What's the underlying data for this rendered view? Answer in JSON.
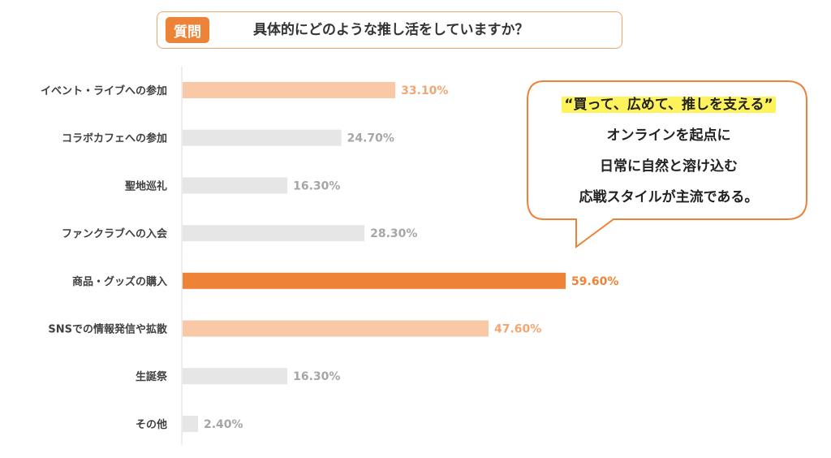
{
  "question": {
    "badge": "質問",
    "text": "具体的にどのような推し活をしていますか？"
  },
  "callout": {
    "lines": [
      "“買って、広めて、推しを支える”",
      "オンラインを起点に",
      "日常に自然と溶け込む",
      "応戦スタイルが主流である。"
    ]
  },
  "colors": {
    "highlight": "#ee8236",
    "light": "#f8c8a7",
    "gray": "#e6e6e6",
    "highlight_label": "#ee8236",
    "light_label": "#f2a673",
    "gray_label": "#a6a6a6",
    "border": "#f2a66b"
  },
  "chart_data": {
    "type": "bar",
    "orientation": "horizontal",
    "categories": [
      "イベント・ライブへの参加",
      "コラボカフェへの参加",
      "聖地巡礼",
      "ファンクラブへの入会",
      "商品・グッズの購入",
      "SNSでの情報発信や拡散",
      "生誕祭",
      "その他"
    ],
    "values": [
      33.1,
      24.7,
      16.3,
      28.3,
      59.6,
      47.6,
      16.3,
      2.4
    ],
    "value_labels": [
      "33.10%",
      "24.70%",
      "16.30%",
      "28.30%",
      "59.60%",
      "47.60%",
      "16.30%",
      "2.40%"
    ],
    "styles": [
      "light",
      "gray",
      "gray",
      "gray",
      "highlight",
      "light",
      "gray",
      "gray"
    ],
    "xlim": [
      0,
      100
    ],
    "grid": false,
    "legend": "none"
  }
}
